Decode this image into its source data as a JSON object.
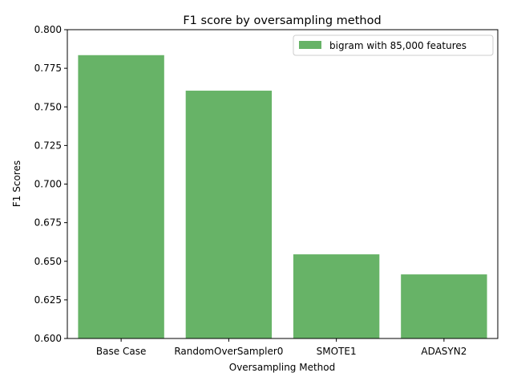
{
  "chart_data": {
    "type": "bar",
    "title": "F1 score by oversampling method",
    "xlabel": "Oversampling Method",
    "ylabel": "F1 Scores",
    "categories": [
      "Base Case",
      "RandomOverSampler0",
      "SMOTE1",
      "ADASYN2"
    ],
    "series": [
      {
        "name": "bigram with 85,000 features",
        "values": [
          0.7835,
          0.7605,
          0.6545,
          0.6415
        ],
        "color": "#67b367"
      }
    ],
    "ylim": [
      0.6,
      0.8
    ],
    "yticks": [
      "0.600",
      "0.625",
      "0.650",
      "0.675",
      "0.700",
      "0.725",
      "0.750",
      "0.775",
      "0.800"
    ],
    "grid": false,
    "legend_position": "top-right"
  }
}
